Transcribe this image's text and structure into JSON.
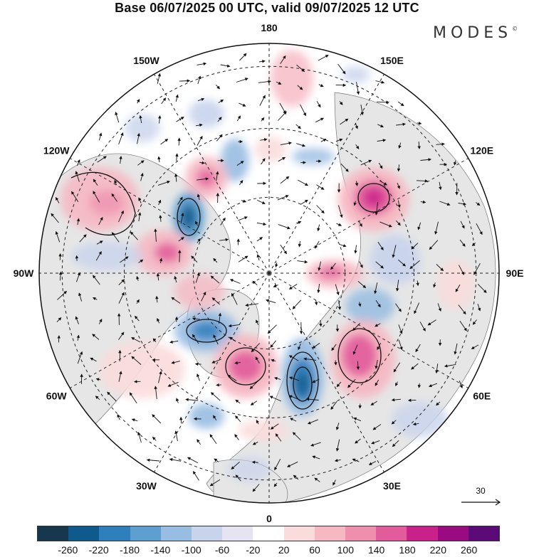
{
  "title": "Base 06/07/2025 00 UTC, valid 09/07/2025 12 UTC",
  "logo": {
    "text": "MODES",
    "mark": "©"
  },
  "map": {
    "projection": "north-polar-stereographic",
    "longitude_labels": [
      "180",
      "150E",
      "120E",
      "90E",
      "60E",
      "30E",
      "0",
      "30W",
      "60W",
      "90W",
      "120W",
      "150W"
    ],
    "graticule_style": "dashed",
    "land_color": "#e8e8e8",
    "ocean_color": "#ffffff"
  },
  "reference_vector": {
    "label": "30"
  },
  "colorbar": {
    "colors": [
      "#17374f",
      "#0f5a8c",
      "#2f7fbd",
      "#5d9fd0",
      "#98bde2",
      "#c8d3ec",
      "#e6e4f2",
      "#ffffff",
      "#fbdcdc",
      "#f6b8c3",
      "#ef8fae",
      "#e25b9b",
      "#c9208a",
      "#9a0a80",
      "#5c0a78"
    ],
    "tick_labels": [
      "-260",
      "-220",
      "-180",
      "-140",
      "-100",
      "-60",
      "-20",
      "20",
      "60",
      "100",
      "140",
      "180",
      "220",
      "260"
    ]
  },
  "icons": {
    "vector_arrows": "wind-vector-icon"
  }
}
